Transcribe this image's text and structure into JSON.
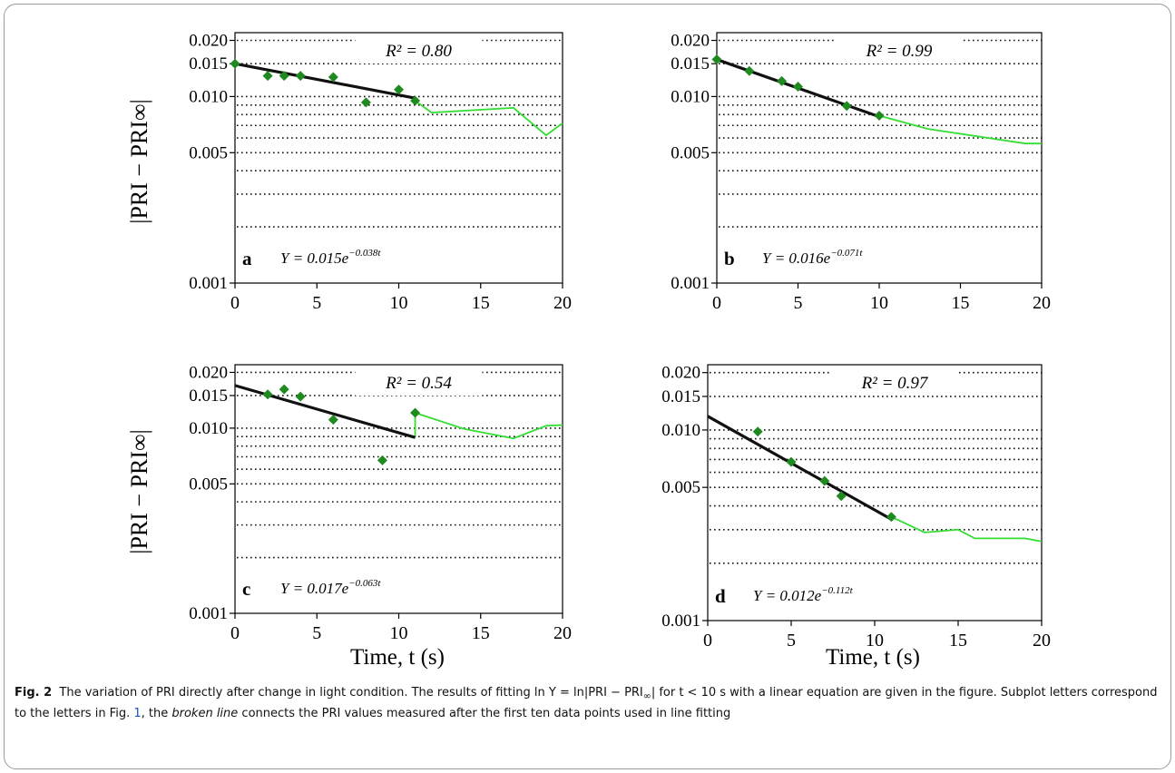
{
  "figure": {
    "label": "Fig. 2",
    "ylabel": "|PRI − PRI∞|",
    "xlabel": "Time,  t  (s)"
  },
  "caption": {
    "p1": "The variation of PRI directly after change in light condition. The results of fitting ln Y = ln|PRI − PRI",
    "sub1": "∞",
    "p2": "| for t < 10 s with a linear equation are given in the figure. Subplot letters correspond to the letters in Fig. ",
    "ref": "1",
    "p3": ", the ",
    "em": "broken line",
    "p4": " connects the PRI values measured after the first ten data points used in line fitting"
  },
  "colors": {
    "points": "#1f8a1f",
    "broken_line": "#33dd33",
    "fit_line": "#111111",
    "grid": "#111111"
  },
  "chart_data": [
    {
      "type": "scatter",
      "letter": "a",
      "yscale": "log",
      "ylim": [
        0.001,
        0.022
      ],
      "xlim": [
        0,
        20
      ],
      "xticks": [
        0,
        5,
        10,
        15,
        20
      ],
      "yticks": [
        "0.001",
        "0.005",
        "0.010",
        "0.015",
        "0.020"
      ],
      "r2_label": "R² = 0.80",
      "equation": {
        "base": "Y = 0.015e",
        "exp": "−0.038t"
      },
      "points": [
        [
          0,
          0.015
        ],
        [
          2,
          0.0129
        ],
        [
          3,
          0.0129
        ],
        [
          4,
          0.0129
        ],
        [
          6,
          0.0127
        ],
        [
          8,
          0.0093
        ],
        [
          10,
          0.0109
        ],
        [
          11,
          0.0095
        ]
      ],
      "broken_line": [
        [
          11,
          0.0095
        ],
        [
          12,
          0.0082
        ],
        [
          17,
          0.0087
        ],
        [
          19,
          0.0062
        ],
        [
          20,
          0.0072
        ]
      ],
      "fit": [
        [
          0,
          0.015
        ],
        [
          11,
          0.0098
        ]
      ]
    },
    {
      "type": "scatter",
      "letter": "b",
      "yscale": "log",
      "ylim": [
        0.001,
        0.022
      ],
      "xlim": [
        0,
        20
      ],
      "xticks": [
        0,
        5,
        10,
        15,
        20
      ],
      "yticks": [
        "0.001",
        "0.005",
        "0.010",
        "0.015",
        "0.020"
      ],
      "r2_label": "R² = 0.99",
      "equation": {
        "base": "Y = 0.016e",
        "exp": "−0.071t"
      },
      "points": [
        [
          0,
          0.0158
        ],
        [
          2,
          0.0137
        ],
        [
          4,
          0.0121
        ],
        [
          5,
          0.0113
        ],
        [
          8,
          0.0089
        ],
        [
          10,
          0.0079
        ]
      ],
      "broken_line": [
        [
          10,
          0.0079
        ],
        [
          13,
          0.0067
        ],
        [
          19,
          0.0056
        ],
        [
          20,
          0.0056
        ]
      ],
      "fit": [
        [
          0,
          0.0158
        ],
        [
          10,
          0.0078
        ]
      ]
    },
    {
      "type": "scatter",
      "letter": "c",
      "yscale": "log",
      "ylim": [
        0.001,
        0.022
      ],
      "xlim": [
        0,
        20
      ],
      "xticks": [
        0,
        5,
        10,
        15,
        20
      ],
      "yticks": [
        "0.001",
        "0.005",
        "0.010",
        "0.015",
        "0.020"
      ],
      "r2_label": "R² = 0.54",
      "equation": {
        "base": "Y = 0.017e",
        "exp": "−0.063t"
      },
      "points": [
        [
          2,
          0.0152
        ],
        [
          3,
          0.0162
        ],
        [
          4,
          0.0148
        ],
        [
          6,
          0.0111
        ],
        [
          9,
          0.0067
        ],
        [
          11,
          0.0121
        ]
      ],
      "broken_line": [
        [
          11,
          0.0089
        ],
        [
          11,
          0.0121
        ],
        [
          14,
          0.0099
        ],
        [
          17,
          0.0088
        ],
        [
          19,
          0.0103
        ],
        [
          20,
          0.0104
        ]
      ],
      "fit": [
        [
          0,
          0.017
        ],
        [
          11,
          0.0089
        ]
      ]
    },
    {
      "type": "scatter",
      "letter": "d",
      "yscale": "log",
      "ylim": [
        0.001,
        0.022
      ],
      "xlim": [
        0,
        20
      ],
      "xticks": [
        0,
        5,
        10,
        15,
        20
      ],
      "yticks": [
        "0.001",
        "0.005",
        "0.010",
        "0.015",
        "0.020"
      ],
      "r2_label": "R² = 0.97",
      "equation": {
        "base": "Y = 0.012e",
        "exp": "−0.112t"
      },
      "points": [
        [
          3,
          0.0098
        ],
        [
          5,
          0.0068
        ],
        [
          7,
          0.0054
        ],
        [
          8,
          0.0045
        ],
        [
          11,
          0.0035
        ]
      ],
      "broken_line": [
        [
          11,
          0.0035
        ],
        [
          13,
          0.0029
        ],
        [
          15,
          0.003
        ],
        [
          16,
          0.0027
        ],
        [
          19,
          0.0027
        ],
        [
          20,
          0.0026
        ]
      ],
      "fit": [
        [
          0,
          0.0118
        ],
        [
          11,
          0.0034
        ]
      ]
    }
  ]
}
